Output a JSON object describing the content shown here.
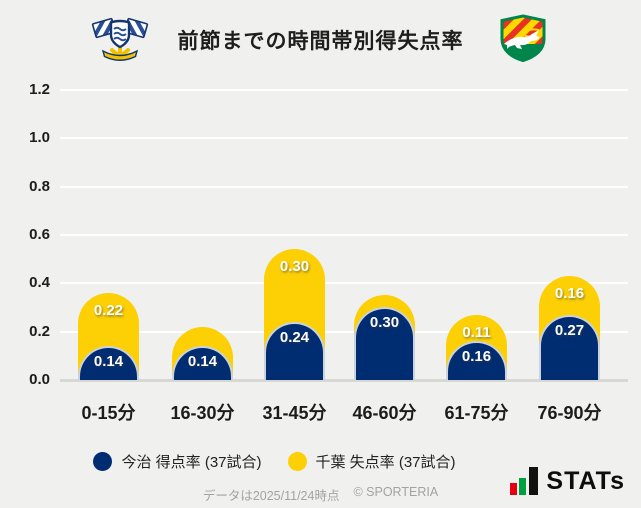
{
  "header": {
    "title": "前節までの時間帯別得失点率",
    "left_logo_icon": "fc-imabari-crest",
    "right_logo_icon": "jef-united-chiba-crest"
  },
  "chart_data": {
    "type": "bar",
    "stacking": "stacked",
    "bar_style": "rounded-pill",
    "title": "前節までの時間帯別得失点率",
    "categories": [
      "0-15分",
      "16-30分",
      "31-45分",
      "46-60分",
      "61-75分",
      "76-90分"
    ],
    "series": [
      {
        "name": "今治 得点率 (37試合)",
        "color": "#002d72",
        "values": [
          0.14,
          0.14,
          0.24,
          0.3,
          0.16,
          0.27
        ],
        "data_labels": [
          "0.14",
          "0.14",
          "0.24",
          "0.30",
          "0.16",
          "0.27"
        ]
      },
      {
        "name": "千葉 失点率 (37試合)",
        "color": "#fcd005",
        "values": [
          0.22,
          0.08,
          0.3,
          0.05,
          0.11,
          0.16
        ],
        "data_labels": [
          "0.22",
          "",
          "0.30",
          "",
          "0.11",
          "0.16"
        ]
      }
    ],
    "ylim": [
      0,
      1.2
    ],
    "yticks": [
      "1.2",
      "1.0",
      "0.8",
      "0.6",
      "0.4",
      "0.2",
      "0.0"
    ],
    "grid": "horizontal-white",
    "legend_position": "bottom"
  },
  "legend": {
    "items": [
      {
        "label": "今治 得点率 (37試合)",
        "color": "#002d72"
      },
      {
        "label": "千葉 失点率 (37試合)",
        "color": "#fcd005"
      }
    ]
  },
  "footer": {
    "data_note": "データは2025/11/24時点",
    "copyright": "© SPORTERIA",
    "brand": "STATs",
    "brand_icon_colors": {
      "red": "#e60012",
      "green": "#00a040",
      "dark": "#111111"
    }
  },
  "colors": {
    "background": "#f0f0ee",
    "gridline": "#ffffff",
    "baseline": "#d7d7d3",
    "text": "#1c1c1c",
    "muted": "#a3a3a3"
  }
}
